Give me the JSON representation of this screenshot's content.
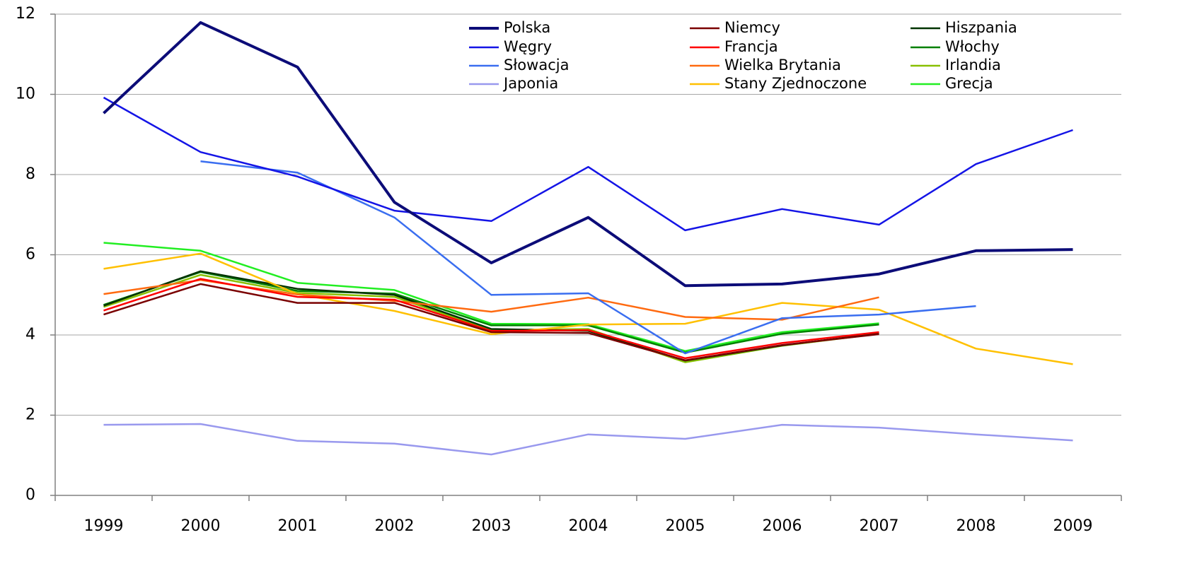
{
  "chart_data": {
    "type": "line",
    "categories": [
      "1999",
      "2000",
      "2001",
      "2002",
      "2003",
      "2004",
      "2005",
      "2006",
      "2007",
      "2008",
      "2009"
    ],
    "ylim": [
      0,
      12
    ],
    "yticks": [
      0,
      2,
      4,
      6,
      8,
      10,
      12
    ],
    "grid": true,
    "legend": "top-right",
    "series": [
      {
        "name": "Polska",
        "color": "#0c0c78",
        "linewidth": 4,
        "values": [
          9.53,
          11.79,
          10.68,
          7.31,
          5.8,
          6.93,
          5.23,
          5.27,
          5.52,
          6.1,
          6.13
        ]
      },
      {
        "name": "Węgry",
        "color": "#1414e6",
        "linewidth": 2.5,
        "values": [
          9.92,
          8.56,
          7.95,
          7.1,
          6.84,
          8.19,
          6.61,
          7.14,
          6.75,
          8.26,
          9.11
        ]
      },
      {
        "name": "Słowacja",
        "color": "#3a6ef0",
        "linewidth": 2.5,
        "values": [
          null,
          8.33,
          8.05,
          6.93,
          5.0,
          5.04,
          3.54,
          4.42,
          4.51,
          4.72,
          null
        ]
      },
      {
        "name": "Japonia",
        "color": "#9999ee",
        "linewidth": 2.5,
        "values": [
          1.76,
          1.78,
          1.36,
          1.29,
          1.02,
          1.52,
          1.41,
          1.76,
          1.69,
          1.52,
          1.37
        ]
      },
      {
        "name": "Niemcy",
        "color": "#7a0000",
        "linewidth": 2.5,
        "values": [
          4.51,
          5.27,
          4.8,
          4.8,
          4.07,
          4.05,
          3.37,
          3.75,
          4.02,
          null,
          null
        ]
      },
      {
        "name": "Francja",
        "color": "#ff0000",
        "linewidth": 2.5,
        "values": [
          4.61,
          5.4,
          4.95,
          4.88,
          4.1,
          4.12,
          3.42,
          3.8,
          4.07,
          null,
          null
        ]
      },
      {
        "name": "Wielka Brytania",
        "color": "#ff6a10",
        "linewidth": 2.5,
        "values": [
          5.02,
          5.37,
          5.01,
          4.85,
          4.58,
          4.93,
          4.45,
          4.38,
          4.94,
          null,
          null
        ]
      },
      {
        "name": "Stany Zjednoczone",
        "color": "#ffc000",
        "linewidth": 2.5,
        "values": [
          5.65,
          6.03,
          5.02,
          4.6,
          4.02,
          4.26,
          4.28,
          4.8,
          4.63,
          3.66,
          3.27
        ]
      },
      {
        "name": "Hiszpania",
        "color": "#003300",
        "linewidth": 2.5,
        "values": [
          4.73,
          5.59,
          5.15,
          5.0,
          4.15,
          4.1,
          3.36,
          3.74,
          4.04,
          null,
          null
        ]
      },
      {
        "name": "Włochy",
        "color": "#008000",
        "linewidth": 2.5,
        "values": [
          4.75,
          5.57,
          5.1,
          5.03,
          4.24,
          4.24,
          3.56,
          4.03,
          4.26,
          null,
          null
        ]
      },
      {
        "name": "Irlandia",
        "color": "#88c000",
        "linewidth": 2.5,
        "values": [
          4.7,
          5.5,
          5.05,
          4.95,
          4.12,
          4.15,
          3.32,
          3.73,
          4.03,
          null,
          null
        ]
      },
      {
        "name": "Grecja",
        "color": "#22ee22",
        "linewidth": 2.5,
        "values": [
          6.3,
          6.1,
          5.3,
          5.12,
          4.28,
          4.27,
          3.6,
          4.07,
          4.29,
          null,
          null
        ]
      }
    ]
  }
}
